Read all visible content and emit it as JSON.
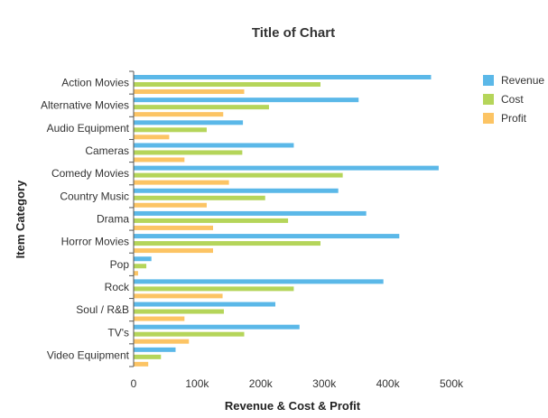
{
  "chart_data": {
    "type": "bar",
    "orientation": "horizontal",
    "title": "Title of Chart",
    "xlabel": "Revenue & Cost & Profit",
    "ylabel": "Item Category",
    "xlim": [
      0,
      500000
    ],
    "x_ticks": [
      0,
      100000,
      200000,
      300000,
      400000,
      500000
    ],
    "x_tick_labels": [
      "0",
      "100k",
      "200k",
      "300k",
      "400k",
      "500k"
    ],
    "grid": false,
    "legend_position": "top-right",
    "categories": [
      "Action Movies",
      "Alternative Movies",
      "Audio Equipment",
      "Cameras",
      "Comedy Movies",
      "Country Music",
      "Drama",
      "Horror Movies",
      "Pop",
      "Rock",
      "Soul / R&B",
      "TV's",
      "Video Equipment"
    ],
    "series": [
      {
        "name": "Revenue",
        "color": "#5bb8e8",
        "values": [
          468000,
          354000,
          172000,
          252000,
          480000,
          322000,
          366000,
          418000,
          28000,
          393000,
          223000,
          261000,
          66000
        ]
      },
      {
        "name": "Cost",
        "color": "#b5d55a",
        "values": [
          294000,
          213000,
          115000,
          171000,
          329000,
          207000,
          243000,
          294000,
          20000,
          252000,
          142000,
          174000,
          43000
        ]
      },
      {
        "name": "Profit",
        "color": "#fcc464",
        "values": [
          174000,
          141000,
          56000,
          80000,
          150000,
          115000,
          125000,
          125000,
          7000,
          140000,
          80000,
          87000,
          23000
        ]
      }
    ]
  }
}
